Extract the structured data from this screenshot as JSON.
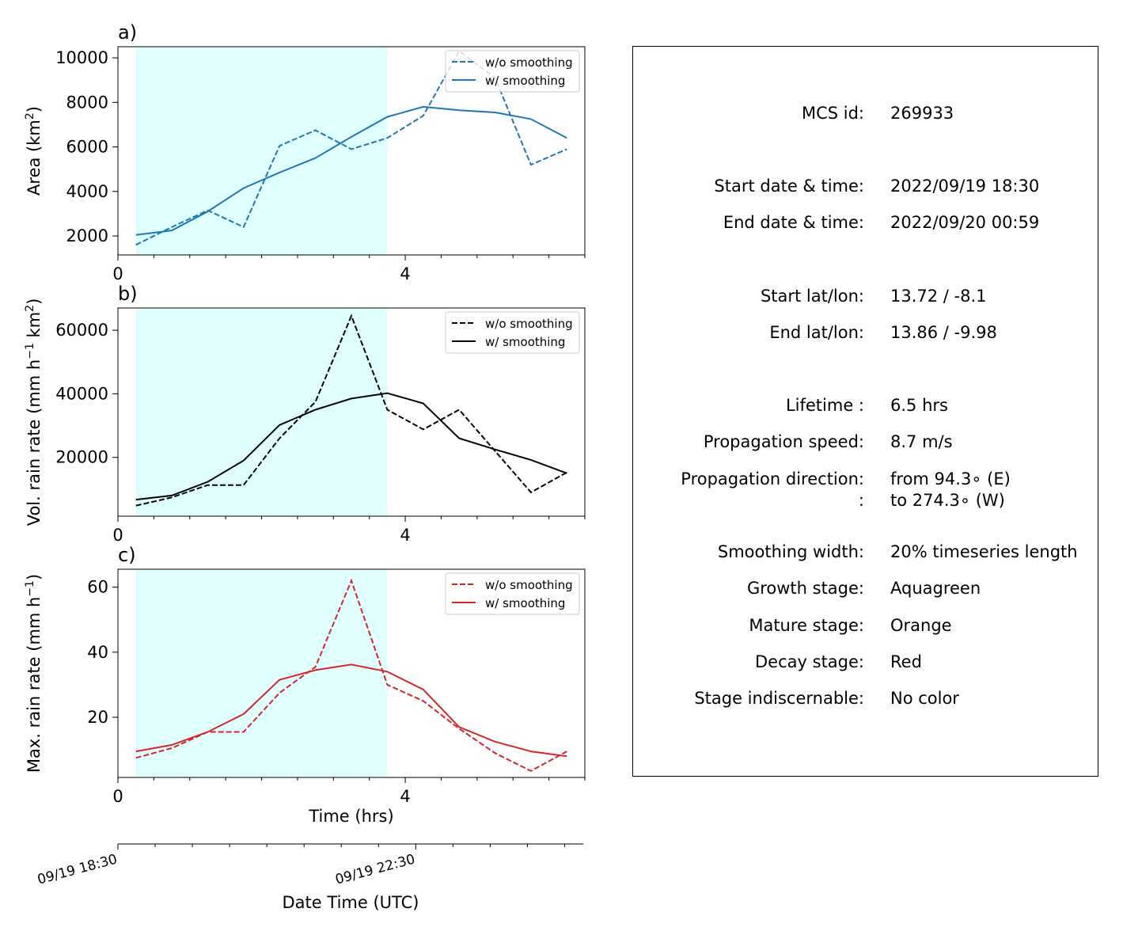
{
  "chart_data": [
    {
      "type": "line",
      "panel_label": "a)",
      "ylabel_text": "Area  (km",
      "ylabel_sup": "2",
      "ylabel_end": ")",
      "color": "#1f77b4",
      "x": [
        0.25,
        0.75,
        1.25,
        1.75,
        2.25,
        2.75,
        3.25,
        3.75,
        4.25,
        4.75,
        5.25,
        5.75,
        6.25
      ],
      "series": [
        {
          "name": "w/o smoothing",
          "dash": true,
          "values": [
            1600,
            2400,
            3150,
            2400,
            6050,
            6750,
            5900,
            6400,
            7400,
            10300,
            9100,
            5200,
            5900
          ]
        },
        {
          "name": "w/ smoothing",
          "dash": false,
          "values": [
            2050,
            2250,
            3100,
            4150,
            4850,
            5500,
            6450,
            7350,
            7800,
            7650,
            7550,
            7250,
            6400
          ]
        }
      ],
      "xlim": [
        0,
        6.5
      ],
      "ylim": [
        1150,
        10500
      ],
      "xticks": [
        0,
        4
      ],
      "yticks": [
        2000,
        4000,
        6000,
        8000,
        10000
      ],
      "legend_position": "upper right"
    },
    {
      "type": "line",
      "panel_label": "b)",
      "ylabel_text": "Vol. rain rate (mm h",
      "ylabel_sup": "−1",
      "ylabel_mid": " km",
      "ylabel_sup2": "2",
      "ylabel_end": ")",
      "color": "#000000",
      "x": [
        0.25,
        0.75,
        1.25,
        1.75,
        2.25,
        2.75,
        3.25,
        3.75,
        4.25,
        4.75,
        5.25,
        5.75,
        6.25
      ],
      "series": [
        {
          "name": "w/o smoothing",
          "dash": true,
          "values": [
            4800,
            7400,
            11300,
            11300,
            26000,
            37500,
            64500,
            35000,
            28800,
            35000,
            22000,
            9000,
            15300
          ]
        },
        {
          "name": "w/ smoothing",
          "dash": false,
          "values": [
            6700,
            8000,
            12300,
            19000,
            30200,
            35000,
            38500,
            40200,
            37000,
            26000,
            22500,
            19200,
            15000
          ]
        }
      ],
      "xlim": [
        0,
        6.5
      ],
      "ylim": [
        1500,
        67000
      ],
      "xticks": [
        0,
        4
      ],
      "yticks": [
        20000,
        40000,
        60000
      ],
      "legend_position": "upper right"
    },
    {
      "type": "line",
      "panel_label": "c)",
      "ylabel_text": "Max. rain rate  (mm h",
      "ylabel_sup": "−1",
      "ylabel_end": ")",
      "color": "#d62728",
      "x": [
        0.25,
        0.75,
        1.25,
        1.75,
        2.25,
        2.75,
        3.25,
        3.75,
        4.25,
        4.75,
        5.25,
        5.75,
        6.25
      ],
      "series": [
        {
          "name": "w/o smoothing",
          "dash": true,
          "values": [
            7.5,
            10.5,
            15.5,
            15.5,
            27.5,
            35.5,
            62.0,
            30.0,
            25.0,
            16.5,
            9.0,
            3.5,
            9.5
          ]
        },
        {
          "name": "w/ smoothing",
          "dash": false,
          "values": [
            9.5,
            11.5,
            15.5,
            21.0,
            31.5,
            34.5,
            36.2,
            34.0,
            28.5,
            17.0,
            12.5,
            9.5,
            8.0
          ]
        }
      ],
      "xlim": [
        0,
        6.5
      ],
      "ylim": [
        1.5,
        65.5
      ],
      "xticks": [
        0,
        4
      ],
      "yticks": [
        20,
        40,
        60
      ],
      "xlabel": "Time (hrs)",
      "legend_position": "upper right"
    }
  ],
  "shade": {
    "x_start": 0.25,
    "x_end": 3.75,
    "color": "#e0ffff"
  },
  "date_axis": {
    "xlabel": "Date Time (UTC)",
    "tick_labels": [
      {
        "x": 0,
        "label": "09/19 18:30"
      },
      {
        "x": 4,
        "label": "09/19 22:30"
      }
    ]
  },
  "info": {
    "rows": [
      {
        "label": "MCS id:",
        "value": "269933"
      },
      {
        "label": "Start date & time:",
        "value": "2022/09/19 18:30"
      },
      {
        "label": "End date & time:",
        "value": "2022/09/20 00:59"
      },
      {
        "label": "Start lat/lon:",
        "value": "13.72 / -8.1"
      },
      {
        "label": "End lat/lon:",
        "value": "13.86 / -9.98"
      },
      {
        "label": "Lifetime :",
        "value": "6.5 hrs"
      },
      {
        "label": "Propagation speed:",
        "value": "8.7 m/s"
      },
      {
        "label": "Propagation direction:",
        "value": "from  94.3∘ (E)"
      },
      {
        "label": ":",
        "value": "to   274.3∘ (W)"
      },
      {
        "label": "Smoothing width:",
        "value": "20% timeseries length"
      },
      {
        "label": "Growth stage:",
        "value": "Aquagreen"
      },
      {
        "label": "Mature stage:",
        "value": "Orange"
      },
      {
        "label": "Decay stage:",
        "value": "Red"
      },
      {
        "label": "Stage indiscernable:",
        "value": "No color"
      }
    ]
  }
}
